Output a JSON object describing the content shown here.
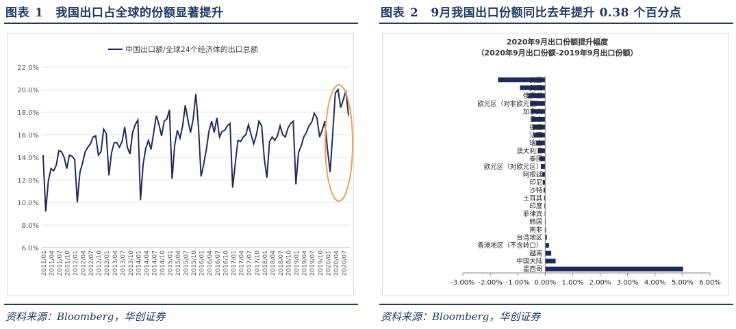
{
  "figure1": {
    "label": "图表",
    "number": "1",
    "title": "我国出口占全球的份额显著提升",
    "source": "资料来源：Bloomberg，华创证券"
  },
  "figure2": {
    "label": "图表",
    "number": "2",
    "title": "9月我国出口份额同比去年提升 0.38 个百分点",
    "source": "资料来源：Bloomberg，华创证券"
  },
  "colors": {
    "navy": "#1f3864",
    "series": "#1f2a5c",
    "highlight": "#f0a050"
  },
  "chart_data": [
    {
      "type": "line",
      "legend": [
        "中国出口额/全球24个经济体的出口总额"
      ],
      "ylim": [
        6.0,
        22.0
      ],
      "yticks": [
        "6.0%",
        "8.0%",
        "10.0%",
        "12.0%",
        "14.0%",
        "16.0%",
        "18.0%",
        "20.0%",
        "22.0%"
      ],
      "x_start": "2011/01",
      "x_end": "2020/09",
      "xticks": [
        "2011/01",
        "2011/04",
        "2011/07",
        "2011/10",
        "2012/01",
        "2012/04",
        "2012/07",
        "2012/10",
        "2013/01",
        "2013/04",
        "2013/07",
        "2013/10",
        "2014/01",
        "2014/04",
        "2014/07",
        "2014/10",
        "2015/01",
        "2015/04",
        "2015/07",
        "2015/10",
        "2016/01",
        "2016/04",
        "2016/07",
        "2016/10",
        "2017/01",
        "2017/04",
        "2017/07",
        "2017/10",
        "2018/01",
        "2018/04",
        "2018/07",
        "2018/10",
        "2019/01",
        "2019/04",
        "2019/07",
        "2019/10",
        "2020/01",
        "2020/04",
        "2020/07"
      ],
      "series": [
        {
          "values": [
            14.2,
            9.2,
            11.9,
            13.0,
            12.8,
            13.3,
            14.6,
            14.5,
            14.0,
            13.0,
            14.2,
            14.1,
            13.8,
            10.0,
            12.7,
            13.5,
            14.5,
            14.9,
            15.2,
            15.8,
            15.9,
            14.2,
            14.5,
            16.5,
            16.1,
            12.4,
            14.4,
            15.3,
            15.3,
            14.9,
            15.4,
            16.7,
            14.9,
            14.3,
            16.2,
            16.9,
            17.3,
            10.2,
            13.4,
            14.8,
            15.5,
            14.7,
            16.2,
            17.7,
            16.9,
            15.9,
            17.2,
            17.4,
            18.2,
            12.1,
            15.1,
            16.4,
            15.7,
            16.8,
            18.6,
            17.3,
            16.2,
            17.4,
            19.6,
            16.8,
            12.3,
            13.4,
            14.7,
            16.3,
            17.2,
            16.2,
            17.5,
            15.8,
            16.3,
            16.4,
            16.8,
            17.0,
            11.3,
            13.5,
            15.5,
            15.4,
            15.8,
            16.0,
            16.9,
            16.0,
            15.2,
            16.0,
            17.2,
            16.8,
            13.9,
            12.2,
            15.4,
            15.8,
            15.5,
            15.9,
            16.8,
            16.0,
            15.8,
            16.6,
            17.0,
            17.2,
            11.6,
            14.4,
            15.0,
            15.8,
            16.2,
            16.8,
            17.1,
            17.9,
            17.5,
            15.8,
            16.4,
            17.2,
            14.7,
            12.7,
            16.1,
            19.7,
            20.0,
            18.4,
            19.1,
            19.9,
            17.7
          ],
          "color": "#1f2a5c"
        }
      ],
      "annotation": "highlight ellipse around 2020/02 – 2020/09"
    },
    {
      "type": "bar",
      "orientation": "horizontal",
      "title": "2020年9月出口份额提升幅度",
      "subtitle": "（2020年9月出口份额-2019年9月出口份额）",
      "xlim": [
        -3.0,
        6.0
      ],
      "xticks": [
        "-3.00%",
        "-2.00%",
        "-1.00%",
        "0.00%",
        "1.00%",
        "2.00%",
        "3.00%",
        "4.00%",
        "5.00%",
        "6.00%"
      ],
      "categories": [
        "美国",
        "英国",
        "俄罗斯",
        "欧元区（对非欧元区）",
        "加拿大",
        "日本",
        "德国",
        "法国",
        "瑞士",
        "澳大利亚",
        "泰国",
        "欧元区（对欧元区）",
        "阿根廷",
        "印尼",
        "沙特",
        "土耳其",
        "印度",
        "菲律宾",
        "韩国",
        "南非",
        "台湾地区",
        "香港地区（不含转口）",
        "越南",
        "中国大陆",
        "墨西哥"
      ],
      "values": [
        -1.72,
        -0.92,
        -0.62,
        -0.55,
        -0.52,
        -0.5,
        -0.45,
        -0.42,
        -0.33,
        -0.25,
        -0.2,
        -0.16,
        -0.12,
        -0.09,
        -0.06,
        -0.04,
        -0.03,
        -0.02,
        0.01,
        0.03,
        0.06,
        0.14,
        0.22,
        0.38,
        5.02
      ],
      "color": "#1f2a5c"
    }
  ]
}
